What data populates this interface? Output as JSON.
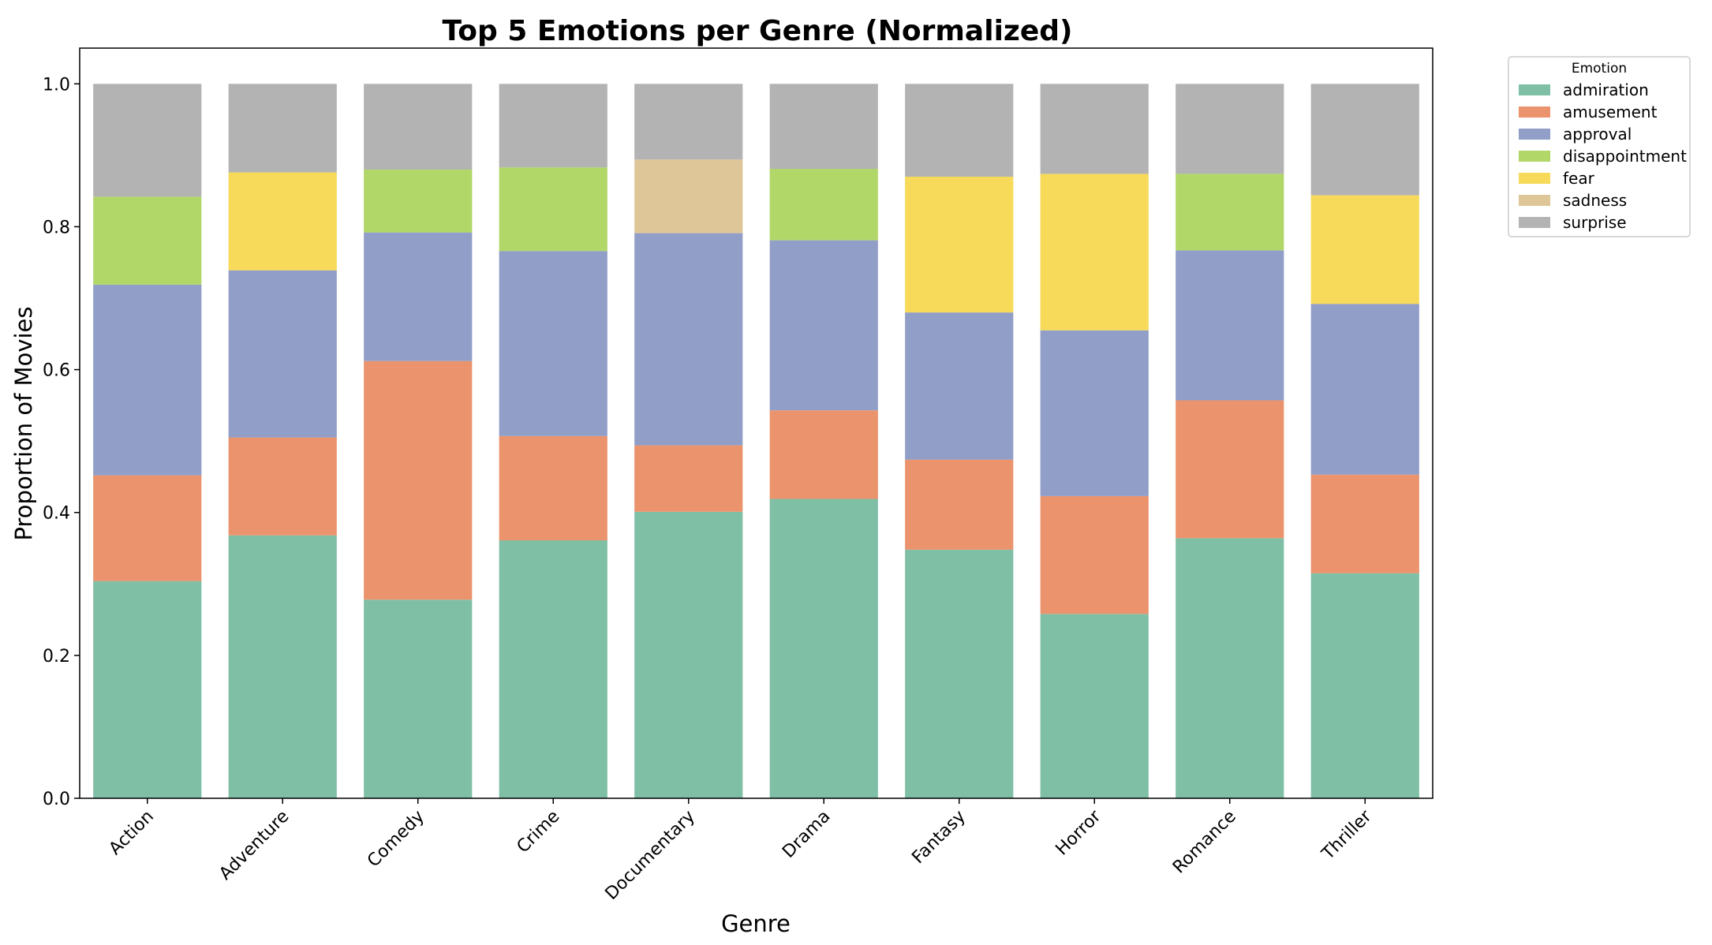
{
  "chart_data": {
    "type": "bar",
    "stacked": true,
    "title": "Top 5 Emotions per Genre (Normalized)",
    "xlabel": "Genre",
    "ylabel": "Proportion of Movies",
    "ylim": [
      0,
      1.05
    ],
    "yticks": [
      "0.0",
      "0.2",
      "0.4",
      "0.6",
      "0.8",
      "1.0"
    ],
    "grid": false,
    "legend_title": "Emotion",
    "legend_position": "outside-top-right",
    "categories": [
      "Action",
      "Adventure",
      "Comedy",
      "Crime",
      "Documentary",
      "Drama",
      "Fantasy",
      "Horror",
      "Romance",
      "Thriller"
    ],
    "series": [
      {
        "name": "admiration",
        "color": "#7fbfa6",
        "values": [
          0.304,
          0.368,
          0.278,
          0.361,
          0.401,
          0.419,
          0.348,
          0.258,
          0.364,
          0.315
        ]
      },
      {
        "name": "amusement",
        "color": "#eb936d",
        "values": [
          0.148,
          0.137,
          0.334,
          0.146,
          0.093,
          0.124,
          0.126,
          0.165,
          0.193,
          0.138
        ]
      },
      {
        "name": "approval",
        "color": "#919ec7",
        "values": [
          0.267,
          0.234,
          0.18,
          0.259,
          0.297,
          0.238,
          0.206,
          0.232,
          0.21,
          0.239
        ]
      },
      {
        "name": "disappointment",
        "color": "#b0d767",
        "values": [
          0.123,
          0,
          0.088,
          0.117,
          0,
          0.1,
          0,
          0,
          0.107,
          0
        ]
      },
      {
        "name": "fear",
        "color": "#f7da59",
        "values": [
          0,
          0.137,
          0,
          0,
          0,
          0,
          0.19,
          0.219,
          0,
          0.152
        ]
      },
      {
        "name": "sadness",
        "color": "#dfc699",
        "values": [
          0,
          0,
          0,
          0,
          0.103,
          0,
          0,
          0,
          0,
          0
        ]
      },
      {
        "name": "surprise",
        "color": "#b3b3b3",
        "values": [
          0.158,
          0.124,
          0.12,
          0.117,
          0.106,
          0.119,
          0.13,
          0.126,
          0.126,
          0.156
        ]
      }
    ]
  }
}
